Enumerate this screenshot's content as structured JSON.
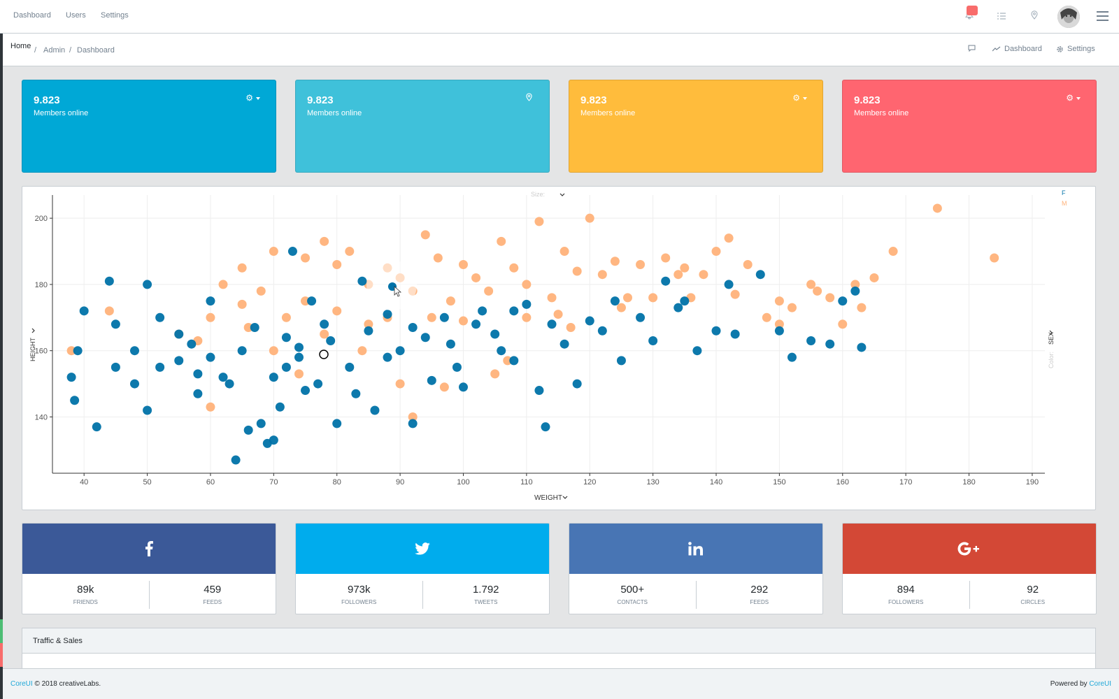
{
  "nav": {
    "links": [
      "Dashboard",
      "Users",
      "Settings"
    ]
  },
  "icons": {
    "notifications": "bell-icon",
    "tasks": "list-icon",
    "location": "map-pin-icon",
    "menu": "hamburger-icon",
    "comment": "comment-icon",
    "chart": "trend-icon",
    "settings": "gear-icon"
  },
  "breadcrumb": {
    "items": [
      "Home",
      "Admin",
      "Dashboard"
    ],
    "tools": {
      "dashboard": "Dashboard",
      "settings": "Settings"
    }
  },
  "stats": [
    {
      "value": "9.823",
      "label": "Members online",
      "color": "#00a8d6",
      "tool": "gear-dropdown"
    },
    {
      "value": "9.823",
      "label": "Members online",
      "color": "#3fc1da",
      "tool": "map-pin"
    },
    {
      "value": "9.823",
      "label": "Members online",
      "color": "#ffbc3c",
      "tool": "gear-dropdown"
    },
    {
      "value": "9.823",
      "label": "Members online",
      "color": "#ff6570",
      "tool": "gear-dropdown"
    }
  ],
  "chart_data": {
    "type": "scatter",
    "xlabel": "WEIGHT",
    "ylabel": "HEIGHT",
    "size_label": "Size:",
    "color_label": "Color:",
    "color_field": "SEX",
    "xlim": [
      35,
      192
    ],
    "ylim": [
      123,
      207
    ],
    "xticks": [
      40,
      50,
      60,
      70,
      80,
      90,
      100,
      110,
      120,
      130,
      140,
      150,
      160,
      170,
      180,
      190
    ],
    "yticks": [
      140,
      160,
      180,
      200
    ],
    "grid": true,
    "legend": "top-right",
    "series": [
      {
        "name": "F",
        "color": "#0072a8",
        "points": [
          [
            38,
            152
          ],
          [
            38.5,
            145
          ],
          [
            39,
            160
          ],
          [
            40,
            172
          ],
          [
            42,
            137
          ],
          [
            44,
            181
          ],
          [
            45,
            155
          ],
          [
            48,
            150
          ],
          [
            50,
            180
          ],
          [
            50,
            142
          ],
          [
            52,
            170
          ],
          [
            55,
            157
          ],
          [
            57,
            162
          ],
          [
            58,
            147
          ],
          [
            60,
            175
          ],
          [
            62,
            152
          ],
          [
            64,
            127
          ],
          [
            65,
            160
          ],
          [
            66,
            136
          ],
          [
            68,
            138
          ],
          [
            69,
            132
          ],
          [
            70,
            133
          ],
          [
            71,
            143
          ],
          [
            72,
            155
          ],
          [
            73,
            190
          ],
          [
            74,
            161
          ],
          [
            75,
            148
          ],
          [
            76,
            175
          ],
          [
            78,
            168
          ],
          [
            80,
            138
          ],
          [
            82,
            155
          ],
          [
            84,
            181
          ],
          [
            86,
            142
          ],
          [
            88,
            171
          ],
          [
            90,
            160
          ],
          [
            92,
            138
          ],
          [
            95,
            151
          ],
          [
            98,
            162
          ],
          [
            100,
            149
          ],
          [
            103,
            172
          ],
          [
            105,
            165
          ],
          [
            108,
            157
          ],
          [
            110,
            174
          ],
          [
            112,
            148
          ],
          [
            113,
            137
          ],
          [
            116,
            162
          ],
          [
            118,
            150
          ],
          [
            120,
            169
          ],
          [
            122,
            166
          ],
          [
            125,
            157
          ],
          [
            128,
            170
          ],
          [
            130,
            163
          ],
          [
            132,
            181
          ],
          [
            135,
            175
          ],
          [
            137,
            160
          ],
          [
            140,
            166
          ],
          [
            142,
            180
          ],
          [
            143,
            165
          ],
          [
            147,
            183
          ],
          [
            150,
            166
          ],
          [
            152,
            158
          ],
          [
            155,
            163
          ],
          [
            158,
            162
          ],
          [
            160,
            175
          ],
          [
            162,
            178
          ],
          [
            163,
            161
          ],
          [
            55,
            165
          ],
          [
            60,
            158
          ],
          [
            67,
            167
          ],
          [
            72,
            164
          ],
          [
            77,
            150
          ],
          [
            83,
            147
          ],
          [
            88,
            158
          ],
          [
            94,
            164
          ],
          [
            99,
            155
          ],
          [
            106,
            160
          ],
          [
            114,
            168
          ],
          [
            124,
            175
          ],
          [
            134,
            173
          ],
          [
            45,
            168
          ],
          [
            48,
            160
          ],
          [
            52,
            155
          ],
          [
            58,
            153
          ],
          [
            63,
            150
          ],
          [
            70,
            152
          ],
          [
            74,
            158
          ],
          [
            79,
            163
          ],
          [
            85,
            166
          ],
          [
            92,
            167
          ],
          [
            97,
            170
          ],
          [
            102,
            168
          ],
          [
            108,
            172
          ]
        ]
      },
      {
        "name": "M",
        "color": "#ffb27a",
        "points": [
          [
            38,
            160
          ],
          [
            44,
            172
          ],
          [
            55,
            165
          ],
          [
            60,
            143
          ],
          [
            62,
            180
          ],
          [
            65,
            185
          ],
          [
            70,
            190
          ],
          [
            75,
            188
          ],
          [
            78,
            193
          ],
          [
            80,
            186
          ],
          [
            82,
            190
          ],
          [
            85,
            180
          ],
          [
            88,
            185
          ],
          [
            90,
            182
          ],
          [
            92,
            178
          ],
          [
            94,
            195
          ],
          [
            96,
            188
          ],
          [
            98,
            175
          ],
          [
            100,
            186
          ],
          [
            102,
            182
          ],
          [
            104,
            178
          ],
          [
            106,
            193
          ],
          [
            108,
            185
          ],
          [
            110,
            180
          ],
          [
            112,
            199
          ],
          [
            114,
            176
          ],
          [
            116,
            190
          ],
          [
            118,
            184
          ],
          [
            120,
            200
          ],
          [
            122,
            183
          ],
          [
            124,
            187
          ],
          [
            126,
            176
          ],
          [
            128,
            186
          ],
          [
            130,
            176
          ],
          [
            132,
            188
          ],
          [
            134,
            183
          ],
          [
            136,
            176
          ],
          [
            138,
            183
          ],
          [
            140,
            190
          ],
          [
            142,
            194
          ],
          [
            145,
            186
          ],
          [
            148,
            170
          ],
          [
            150,
            168
          ],
          [
            152,
            173
          ],
          [
            155,
            180
          ],
          [
            156,
            178
          ],
          [
            158,
            176
          ],
          [
            160,
            168
          ],
          [
            162,
            180
          ],
          [
            165,
            182
          ],
          [
            168,
            190
          ],
          [
            175,
            203
          ],
          [
            184,
            188
          ],
          [
            92,
            140
          ],
          [
            97,
            149
          ],
          [
            105,
            153
          ],
          [
            85,
            168
          ],
          [
            75,
            175
          ],
          [
            68,
            178
          ],
          [
            80,
            172
          ],
          [
            88,
            170
          ],
          [
            95,
            170
          ],
          [
            100,
            169
          ],
          [
            110,
            170
          ],
          [
            115,
            171
          ],
          [
            60,
            170
          ],
          [
            65,
            174
          ],
          [
            72,
            170
          ],
          [
            78,
            165
          ],
          [
            84,
            160
          ],
          [
            70,
            160
          ],
          [
            74,
            153
          ],
          [
            90,
            150
          ],
          [
            66,
            167
          ],
          [
            58,
            163
          ],
          [
            107,
            157
          ],
          [
            117,
            167
          ],
          [
            125,
            173
          ],
          [
            135,
            185
          ],
          [
            143,
            177
          ],
          [
            150,
            175
          ],
          [
            163,
            173
          ]
        ]
      }
    ]
  },
  "social": [
    {
      "network": "facebook",
      "icon": "facebook-icon",
      "color": "#3b5998",
      "stats": [
        {
          "value": "89k",
          "label": "friends"
        },
        {
          "value": "459",
          "label": "feeds"
        }
      ]
    },
    {
      "network": "twitter",
      "icon": "twitter-icon",
      "color": "#00aced",
      "stats": [
        {
          "value": "973k",
          "label": "followers"
        },
        {
          "value": "1.792",
          "label": "tweets"
        }
      ]
    },
    {
      "network": "linkedin",
      "icon": "linkedin-icon",
      "color": "#4875b4",
      "stats": [
        {
          "value": "500+",
          "label": "contacts"
        },
        {
          "value": "292",
          "label": "feeds"
        }
      ]
    },
    {
      "network": "google-plus",
      "icon": "google-plus-icon",
      "color": "#d34836",
      "stats": [
        {
          "value": "894",
          "label": "followers"
        },
        {
          "value": "92",
          "label": "circles"
        }
      ]
    }
  ],
  "traffic": {
    "title": "Traffic & Sales"
  },
  "footer": {
    "brand": "CoreUI",
    "copyright": "© 2018 creativeLabs.",
    "powered_by": "Powered by",
    "powered_link": "CoreUI"
  }
}
